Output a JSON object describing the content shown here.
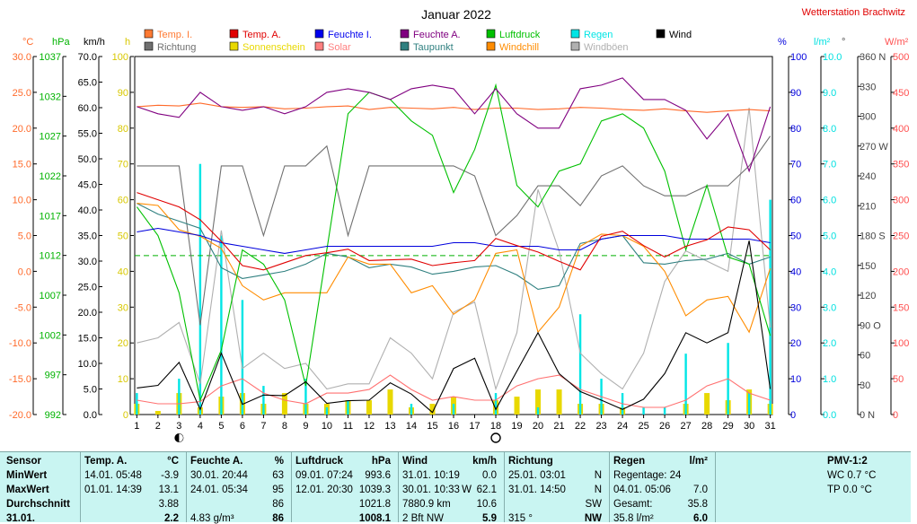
{
  "chart_data": {
    "type": "line",
    "title": "Januar 2022",
    "station": "Wetterstation Brachwitz",
    "x": [
      1,
      2,
      3,
      4,
      5,
      6,
      7,
      8,
      9,
      10,
      11,
      12,
      13,
      14,
      15,
      16,
      17,
      18,
      19,
      20,
      21,
      22,
      23,
      24,
      25,
      26,
      27,
      28,
      29,
      30,
      31
    ],
    "xlim": [
      0.9,
      31.1
    ],
    "axes": {
      "temp": {
        "unit": "°C",
        "range": [
          -20,
          30
        ],
        "ticks": [
          "30.0",
          "25.0",
          "20.0",
          "15.0",
          "10.0",
          "5.0",
          "0.0",
          "-5.0",
          "-10.0",
          "-15.0",
          "-20.0"
        ],
        "color": "#ff6a2a"
      },
      "pressure": {
        "unit": "hPa",
        "range": [
          992,
          1042
        ],
        "ticks": [
          "1037",
          "1032",
          "1027",
          "1022",
          "1017",
          "1012",
          "1007",
          "1002",
          "997",
          "992"
        ],
        "color": "#00b300"
      },
      "wind": {
        "unit": "km/h",
        "range": [
          0,
          70
        ],
        "ticks": [
          "70.0",
          "65.0",
          "60.0",
          "55.0",
          "50.0",
          "45.0",
          "40.0",
          "35.0",
          "30.0",
          "25.0",
          "20.0",
          "15.0",
          "10.0",
          "5.0",
          "0.0"
        ],
        "color": "#000000"
      },
      "sunshine": {
        "unit": "h",
        "range": [
          0,
          100
        ],
        "ticks": [
          "100",
          "90",
          "80",
          "70",
          "60",
          "50",
          "40",
          "30",
          "20",
          "10",
          "0"
        ],
        "color": "#d8c800"
      },
      "humidity": {
        "unit": "%",
        "range": [
          0,
          100
        ],
        "ticks": [
          "100",
          "90",
          "80",
          "70",
          "60",
          "50",
          "40",
          "30",
          "20",
          "10",
          "0"
        ],
        "color": "#0000dd"
      },
      "rain": {
        "unit": "l/m²",
        "range": [
          0,
          10
        ],
        "ticks": [
          "10.0",
          "9.0",
          "8.0",
          "7.0",
          "6.0",
          "5.0",
          "4.0",
          "3.0",
          "2.0",
          "1.0",
          "0.0"
        ],
        "color": "#00e0e0"
      },
      "direction": {
        "unit": "°",
        "range": [
          0,
          360
        ],
        "ticks": [
          "360 N",
          "330",
          "300",
          "270 W",
          "240",
          "210",
          "180 S",
          "150",
          "120",
          "90 O",
          "60",
          "30",
          "0 N"
        ],
        "color": "#444444"
      },
      "solar": {
        "unit": "W/m²",
        "range": [
          0,
          500
        ],
        "ticks": [
          "500",
          "450",
          "400",
          "350",
          "300",
          "250",
          "200",
          "150",
          "100",
          "50",
          "0"
        ],
        "color": "#ff5050"
      }
    },
    "legend": [
      {
        "label": "Temp. I.",
        "color": "#ff7a33"
      },
      {
        "label": "Temp. A.",
        "color": "#e00000"
      },
      {
        "label": "Feuchte I.",
        "color": "#0000ee"
      },
      {
        "label": "Feuchte A.",
        "color": "#800080"
      },
      {
        "label": "Luftdruck",
        "color": "#00c000"
      },
      {
        "label": "Regen",
        "color": "#00e5e5"
      },
      {
        "label": "Wind",
        "color": "#000000"
      },
      {
        "label": "Richtung",
        "color": "#707070"
      },
      {
        "label": "Sonnenschein",
        "color": "#e8d800"
      },
      {
        "label": "Solar",
        "color": "#ff8080"
      },
      {
        "label": "Taupunkt",
        "color": "#308080"
      },
      {
        "label": "Windchill",
        "color": "#ff8c00"
      },
      {
        "label": "Windböen",
        "color": "#b0b0b0"
      }
    ],
    "reference_line": {
      "axis": "temp",
      "value": 2.2,
      "color": "#00b000"
    },
    "moon_phases": [
      {
        "day": 3,
        "phase": "new"
      },
      {
        "day": 18,
        "phase": "full"
      }
    ],
    "series": [
      {
        "name": "Temp. I.",
        "axis": "temp",
        "color": "#ff6a2a",
        "values": [
          23.0,
          23.2,
          23.1,
          23.5,
          23.0,
          22.9,
          23.0,
          22.7,
          22.8,
          23.0,
          23.1,
          22.6,
          22.9,
          22.8,
          22.7,
          22.9,
          22.6,
          22.8,
          22.8,
          22.6,
          22.7,
          22.9,
          22.8,
          22.6,
          22.5,
          22.7,
          22.4,
          22.2,
          22.4,
          22.6,
          22.4
        ]
      },
      {
        "name": "Temp. A.",
        "axis": "temp",
        "color": "#e00000",
        "values": [
          11.0,
          10.0,
          9.0,
          7.2,
          4.2,
          0.8,
          0.2,
          1.2,
          2.2,
          2.6,
          3.1,
          1.5,
          1.6,
          1.7,
          0.8,
          1.2,
          1.5,
          4.6,
          3.6,
          2.7,
          1.4,
          0.2,
          4.9,
          5.6,
          3.6,
          2.0,
          3.5,
          4.4,
          6.2,
          5.8,
          3.0
        ]
      },
      {
        "name": "Feuchte I.",
        "axis": "humidity",
        "color": "#0000dd",
        "values": [
          51,
          52,
          51,
          50,
          48,
          47,
          46,
          45,
          46,
          47,
          47,
          47,
          47,
          47,
          47,
          48,
          48,
          47,
          47,
          47,
          46,
          46,
          49,
          50,
          50,
          50,
          49,
          49,
          49,
          49,
          48
        ]
      },
      {
        "name": "Feuchte A.",
        "axis": "humidity",
        "color": "#800080",
        "values": [
          86,
          84,
          83,
          90,
          86,
          85,
          86,
          84,
          86,
          90,
          91,
          90,
          88,
          91,
          92,
          91,
          84,
          91,
          84,
          80,
          80,
          91,
          92,
          94,
          88,
          88,
          85,
          77,
          84,
          68,
          86
        ]
      },
      {
        "name": "Luftdruck",
        "axis": "pressure",
        "color": "#00c000",
        "values": [
          1021,
          1017,
          1009,
          994.0,
          1001,
          1015,
          1013,
          1008,
          996,
          1015,
          1034,
          1037,
          1036,
          1033,
          1031,
          1023,
          1029,
          1038,
          1024,
          1021,
          1026,
          1027,
          1033,
          1034,
          1032,
          1026,
          1015,
          1024,
          1014,
          1013,
          1003
        ]
      },
      {
        "name": "Wind",
        "axis": "wind",
        "color": "#000000",
        "values": [
          5.2,
          5.7,
          10.2,
          1.0,
          12.0,
          2.0,
          3.8,
          3.7,
          6.4,
          2.2,
          2.7,
          2.8,
          6.2,
          4.0,
          0.4,
          9.0,
          11.0,
          1.0,
          8.5,
          16.0,
          8.0,
          4.5,
          2.8,
          1.0,
          3.0,
          8.0,
          16.0,
          14.0,
          16.0,
          34.0,
          5.0
        ]
      },
      {
        "name": "Richtung",
        "axis": "direction",
        "color": "#707070",
        "values": [
          250,
          250,
          250,
          90,
          250,
          250,
          180,
          250,
          250,
          270,
          180,
          250,
          250,
          250,
          250,
          250,
          240,
          180,
          200,
          230,
          230,
          210,
          240,
          250,
          230,
          220,
          220,
          230,
          230,
          250,
          280
        ]
      },
      {
        "name": "Windböen",
        "axis": "wind",
        "color": "#b0b0b0",
        "values": [
          14,
          15,
          18,
          6,
          36,
          9,
          12,
          9,
          10,
          5,
          6,
          6,
          15,
          12,
          7,
          20,
          22,
          5,
          16,
          44,
          32,
          12,
          8,
          5,
          12,
          26,
          32,
          30,
          28,
          60,
          17
        ]
      },
      {
        "name": "Taupunkt",
        "axis": "temp",
        "color": "#308080",
        "values": [
          9.5,
          8.0,
          7.0,
          6.0,
          0.5,
          -1.0,
          -0.5,
          0.0,
          1.0,
          2.5,
          2.0,
          0.5,
          1.0,
          0.6,
          -0.4,
          0.0,
          0.6,
          0.8,
          -0.5,
          -2.5,
          -2.0,
          3.9,
          4.5,
          5.0,
          1.2,
          1.0,
          1.5,
          1.7,
          2.5,
          1.0,
          2.0
        ]
      },
      {
        "name": "Windchill",
        "axis": "temp",
        "color": "#ff8c00",
        "values": [
          9.5,
          9.2,
          5.8,
          4.9,
          3.2,
          -2.0,
          -4.0,
          -3.0,
          -3.0,
          -3.0,
          2.0,
          1.0,
          1.0,
          -3.0,
          -2.0,
          -6.0,
          -4.0,
          2.5,
          3.0,
          -8.5,
          -5.0,
          3.5,
          5.2,
          5.0,
          3.5,
          0.0,
          -6.2,
          -4.0,
          -3.5,
          -8.5,
          0.4
        ]
      },
      {
        "name": "Sonnenschein",
        "axis": "sunshine",
        "color": "#e8d800",
        "values": [
          3,
          1,
          6,
          2,
          5,
          6,
          3,
          6,
          3,
          3,
          4,
          4,
          7,
          2,
          3,
          5,
          0,
          4,
          5,
          7,
          7,
          3,
          3,
          2,
          0,
          0,
          3,
          6,
          4,
          7,
          3
        ]
      },
      {
        "name": "Regen",
        "axis": "rain",
        "color": "#00e5e5",
        "values": [
          0.6,
          0.0,
          1.0,
          7.0,
          5.0,
          3.2,
          0.8,
          0.0,
          1.0,
          0.2,
          0.4,
          0.0,
          0.0,
          0.3,
          0.0,
          0.3,
          0.0,
          0.6,
          0.0,
          0.2,
          0.0,
          2.8,
          1.0,
          0.6,
          0.2,
          0.2,
          1.7,
          0.0,
          2.0,
          0.6,
          6.0
        ]
      },
      {
        "name": "Solar",
        "axis": "solar",
        "color": "#ff7070",
        "values": [
          20,
          15,
          15,
          18,
          40,
          50,
          30,
          20,
          15,
          30,
          30,
          35,
          55,
          35,
          20,
          25,
          20,
          20,
          40,
          50,
          55,
          35,
          25,
          15,
          10,
          10,
          20,
          40,
          50,
          30,
          20
        ]
      }
    ]
  },
  "stats": {
    "sensor": {
      "header": "Sensor",
      "rows": [
        "MinWert",
        "MaxWert",
        "Durchschnitt",
        "31.01."
      ]
    },
    "temp": {
      "header": "Temp. A.",
      "unit": "°C",
      "min_time": "14.01.  05:48",
      "min_val": "-3.9",
      "max_time": "01.01.  14:39",
      "max_val": "13.1",
      "avg_val": "3.88",
      "cur_val": "2.2"
    },
    "humidity": {
      "header": "Feuchte A.",
      "unit": "%",
      "min_time": "30.01.  20:44",
      "min_val": "63",
      "max_time": "24.01.  05:34",
      "max_val": "95",
      "avg_val": "86",
      "cur_extra": "4.83 g/m³",
      "cur_val": "86"
    },
    "pressure": {
      "header": "Luftdruck",
      "unit": "hPa",
      "min_time": "09.01.  07:24",
      "min_val": "993.6",
      "max_time": "12.01.  20:30",
      "max_val": "1039.3",
      "avg_val": "1021.8",
      "cur_val": "1008.1"
    },
    "wind": {
      "header": "Wind",
      "unit": "km/h",
      "min_time": "31.01.  10:19",
      "min_val": "0.0",
      "max_time": "30.01.  10:33",
      "max_dir": "W",
      "max_val": "62.1",
      "avg_extra": "7880.9 km",
      "avg_val": "10.6",
      "cur_extra": "2 Bft NW",
      "cur_val": "5.9"
    },
    "direction": {
      "header": "Richtung",
      "min_time": "25.01.  03:01",
      "min_val": "N",
      "max_time": "31.01.  14:50",
      "max_val": "N",
      "avg_val": "SW",
      "cur_extra": "315 °",
      "cur_val": "NW"
    },
    "rain": {
      "header": "Regen",
      "unit": "l/m²",
      "days": "Regentage: 24",
      "max_time": "04.01.  05:06",
      "max_val": "7.0",
      "total_label": "Gesamt:",
      "total_val": "35.8",
      "cur_extra": "35.8 l/m²",
      "cur_val": "6.0"
    },
    "pmv": {
      "header": "PMV-1:2",
      "wc": "WC 0.7 °C",
      "tp": "TP 0.0 °C"
    }
  }
}
